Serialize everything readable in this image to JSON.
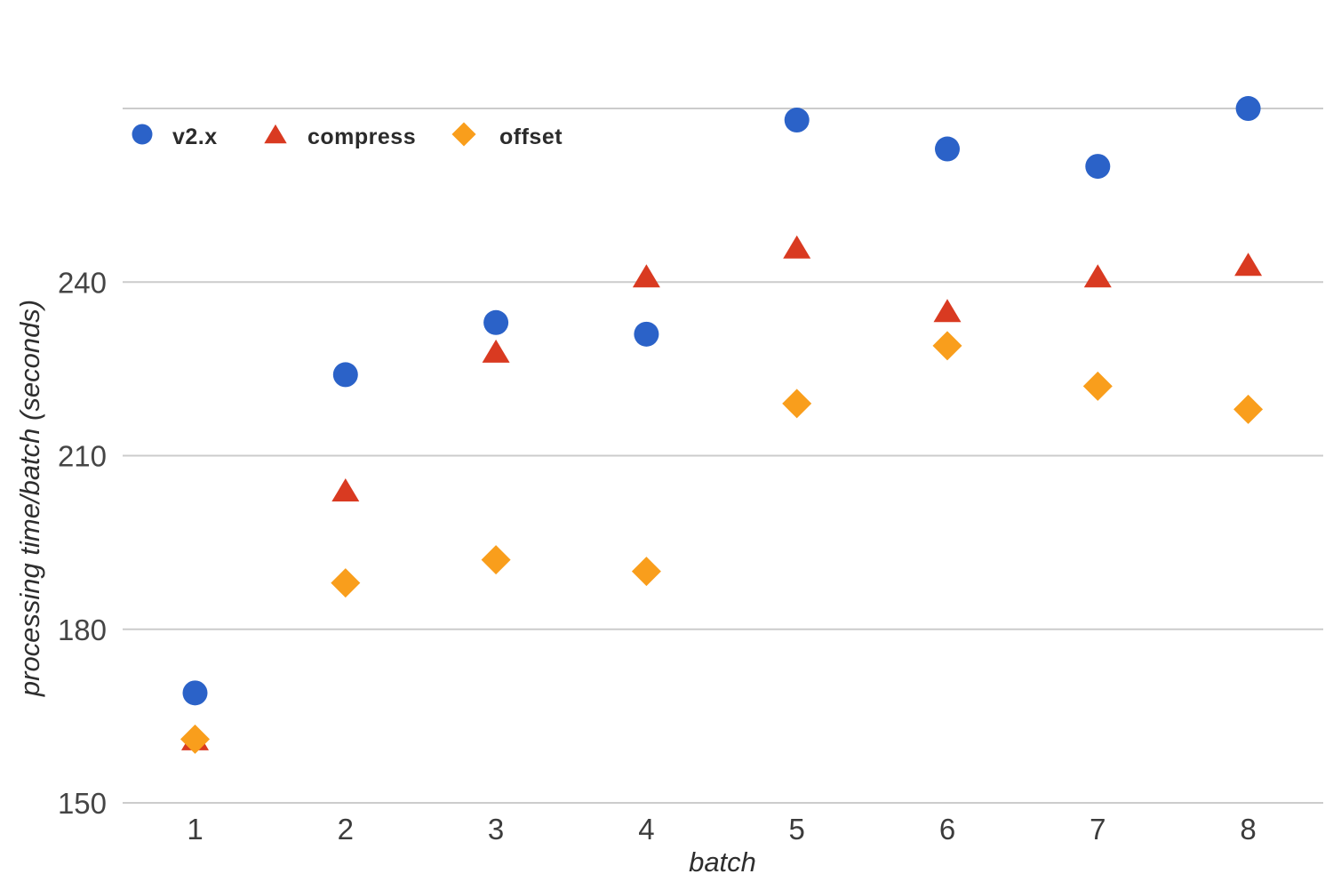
{
  "chart_data": {
    "type": "scatter",
    "title": "",
    "xlabel": "batch",
    "ylabel": "processing time/batch (seconds)",
    "x_categories": [
      1,
      2,
      3,
      4,
      5,
      6,
      7,
      8
    ],
    "y_ticks": [
      150,
      180,
      210,
      240
    ],
    "y_gridlines": [
      150,
      180,
      210,
      240,
      270
    ],
    "ylim": [
      150,
      272
    ],
    "grid": true,
    "legend_position": "top-left-inside",
    "series": [
      {
        "name": "v2.x",
        "marker": "circle",
        "color": "#2b62c8",
        "values": [
          169,
          224,
          233,
          231,
          268,
          263,
          260,
          270
        ]
      },
      {
        "name": "compress",
        "marker": "triangle",
        "color": "#d93a21",
        "values": [
          161,
          204,
          228,
          241,
          246,
          235,
          241,
          243
        ]
      },
      {
        "name": "offset",
        "marker": "diamond",
        "color": "#f99e1c",
        "values": [
          161,
          188,
          192,
          190,
          219,
          229,
          222,
          218
        ]
      }
    ],
    "colors": {
      "background": "#ffffff",
      "gridline": "#cccccc",
      "tick_text": "#454545",
      "axis_title_text": "#2e2e2e",
      "legend_text": "#2b2b2b"
    }
  }
}
